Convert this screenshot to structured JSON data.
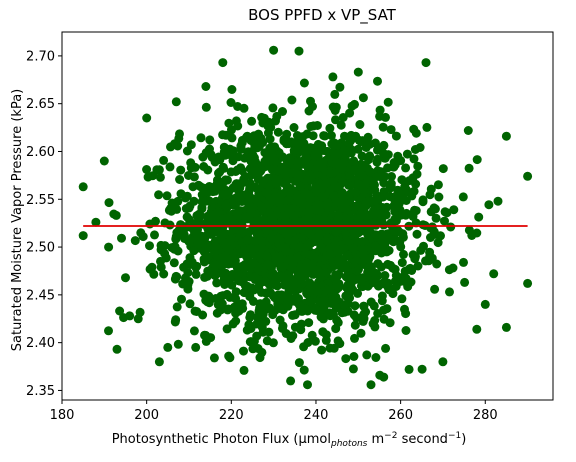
{
  "chart_data": {
    "type": "scatter",
    "title": "BOS PPFD x VP_SAT",
    "xlabel": {
      "pre": "Photosynthetic Photon Flux (µmol",
      "sub": "photons",
      "mid": " m",
      "sup1": "−2",
      "post": " second",
      "sup2": "−1",
      "end": ")"
    },
    "ylabel": "Saturated Moisture Vapor Pressure (kPa)",
    "xlim": [
      180,
      296
    ],
    "ylim": [
      2.34,
      2.725
    ],
    "xticks": [
      180,
      200,
      220,
      240,
      260,
      280
    ],
    "yticks": [
      2.35,
      2.4,
      2.45,
      2.5,
      2.55,
      2.6,
      2.65,
      2.7
    ],
    "point_color": "#006400",
    "line_color": "#e00000",
    "cloud": {
      "x_center": 236,
      "y_center": 2.522,
      "x_sd": 14,
      "y_sd": 0.052,
      "count": 2600
    },
    "outliers": [
      {
        "x": 185,
        "y": 2.563
      },
      {
        "x": 185,
        "y": 2.512
      },
      {
        "x": 188,
        "y": 2.526
      },
      {
        "x": 190,
        "y": 2.59
      },
      {
        "x": 191,
        "y": 2.5
      },
      {
        "x": 193,
        "y": 2.393
      },
      {
        "x": 195,
        "y": 2.468
      },
      {
        "x": 196,
        "y": 2.428
      },
      {
        "x": 198,
        "y": 2.425
      },
      {
        "x": 200,
        "y": 2.635
      },
      {
        "x": 203,
        "y": 2.38
      },
      {
        "x": 205,
        "y": 2.395
      },
      {
        "x": 207,
        "y": 2.652
      },
      {
        "x": 214,
        "y": 2.668
      },
      {
        "x": 216,
        "y": 2.384
      },
      {
        "x": 218,
        "y": 2.693
      },
      {
        "x": 223,
        "y": 2.371
      },
      {
        "x": 230,
        "y": 2.706
      },
      {
        "x": 236,
        "y": 2.705
      },
      {
        "x": 234,
        "y": 2.36
      },
      {
        "x": 238,
        "y": 2.356
      },
      {
        "x": 244,
        "y": 2.678
      },
      {
        "x": 250,
        "y": 2.683
      },
      {
        "x": 253,
        "y": 2.356
      },
      {
        "x": 256,
        "y": 2.364
      },
      {
        "x": 262,
        "y": 2.372
      },
      {
        "x": 266,
        "y": 2.693
      },
      {
        "x": 270,
        "y": 2.38
      },
      {
        "x": 276,
        "y": 2.622
      },
      {
        "x": 278,
        "y": 2.414
      },
      {
        "x": 280,
        "y": 2.44
      },
      {
        "x": 282,
        "y": 2.472
      },
      {
        "x": 283,
        "y": 2.548
      },
      {
        "x": 285,
        "y": 2.616
      },
      {
        "x": 285,
        "y": 2.416
      },
      {
        "x": 290,
        "y": 2.574
      },
      {
        "x": 290,
        "y": 2.462
      }
    ],
    "regression_line": {
      "x": [
        185,
        290
      ],
      "y": [
        2.522,
        2.522
      ]
    }
  }
}
